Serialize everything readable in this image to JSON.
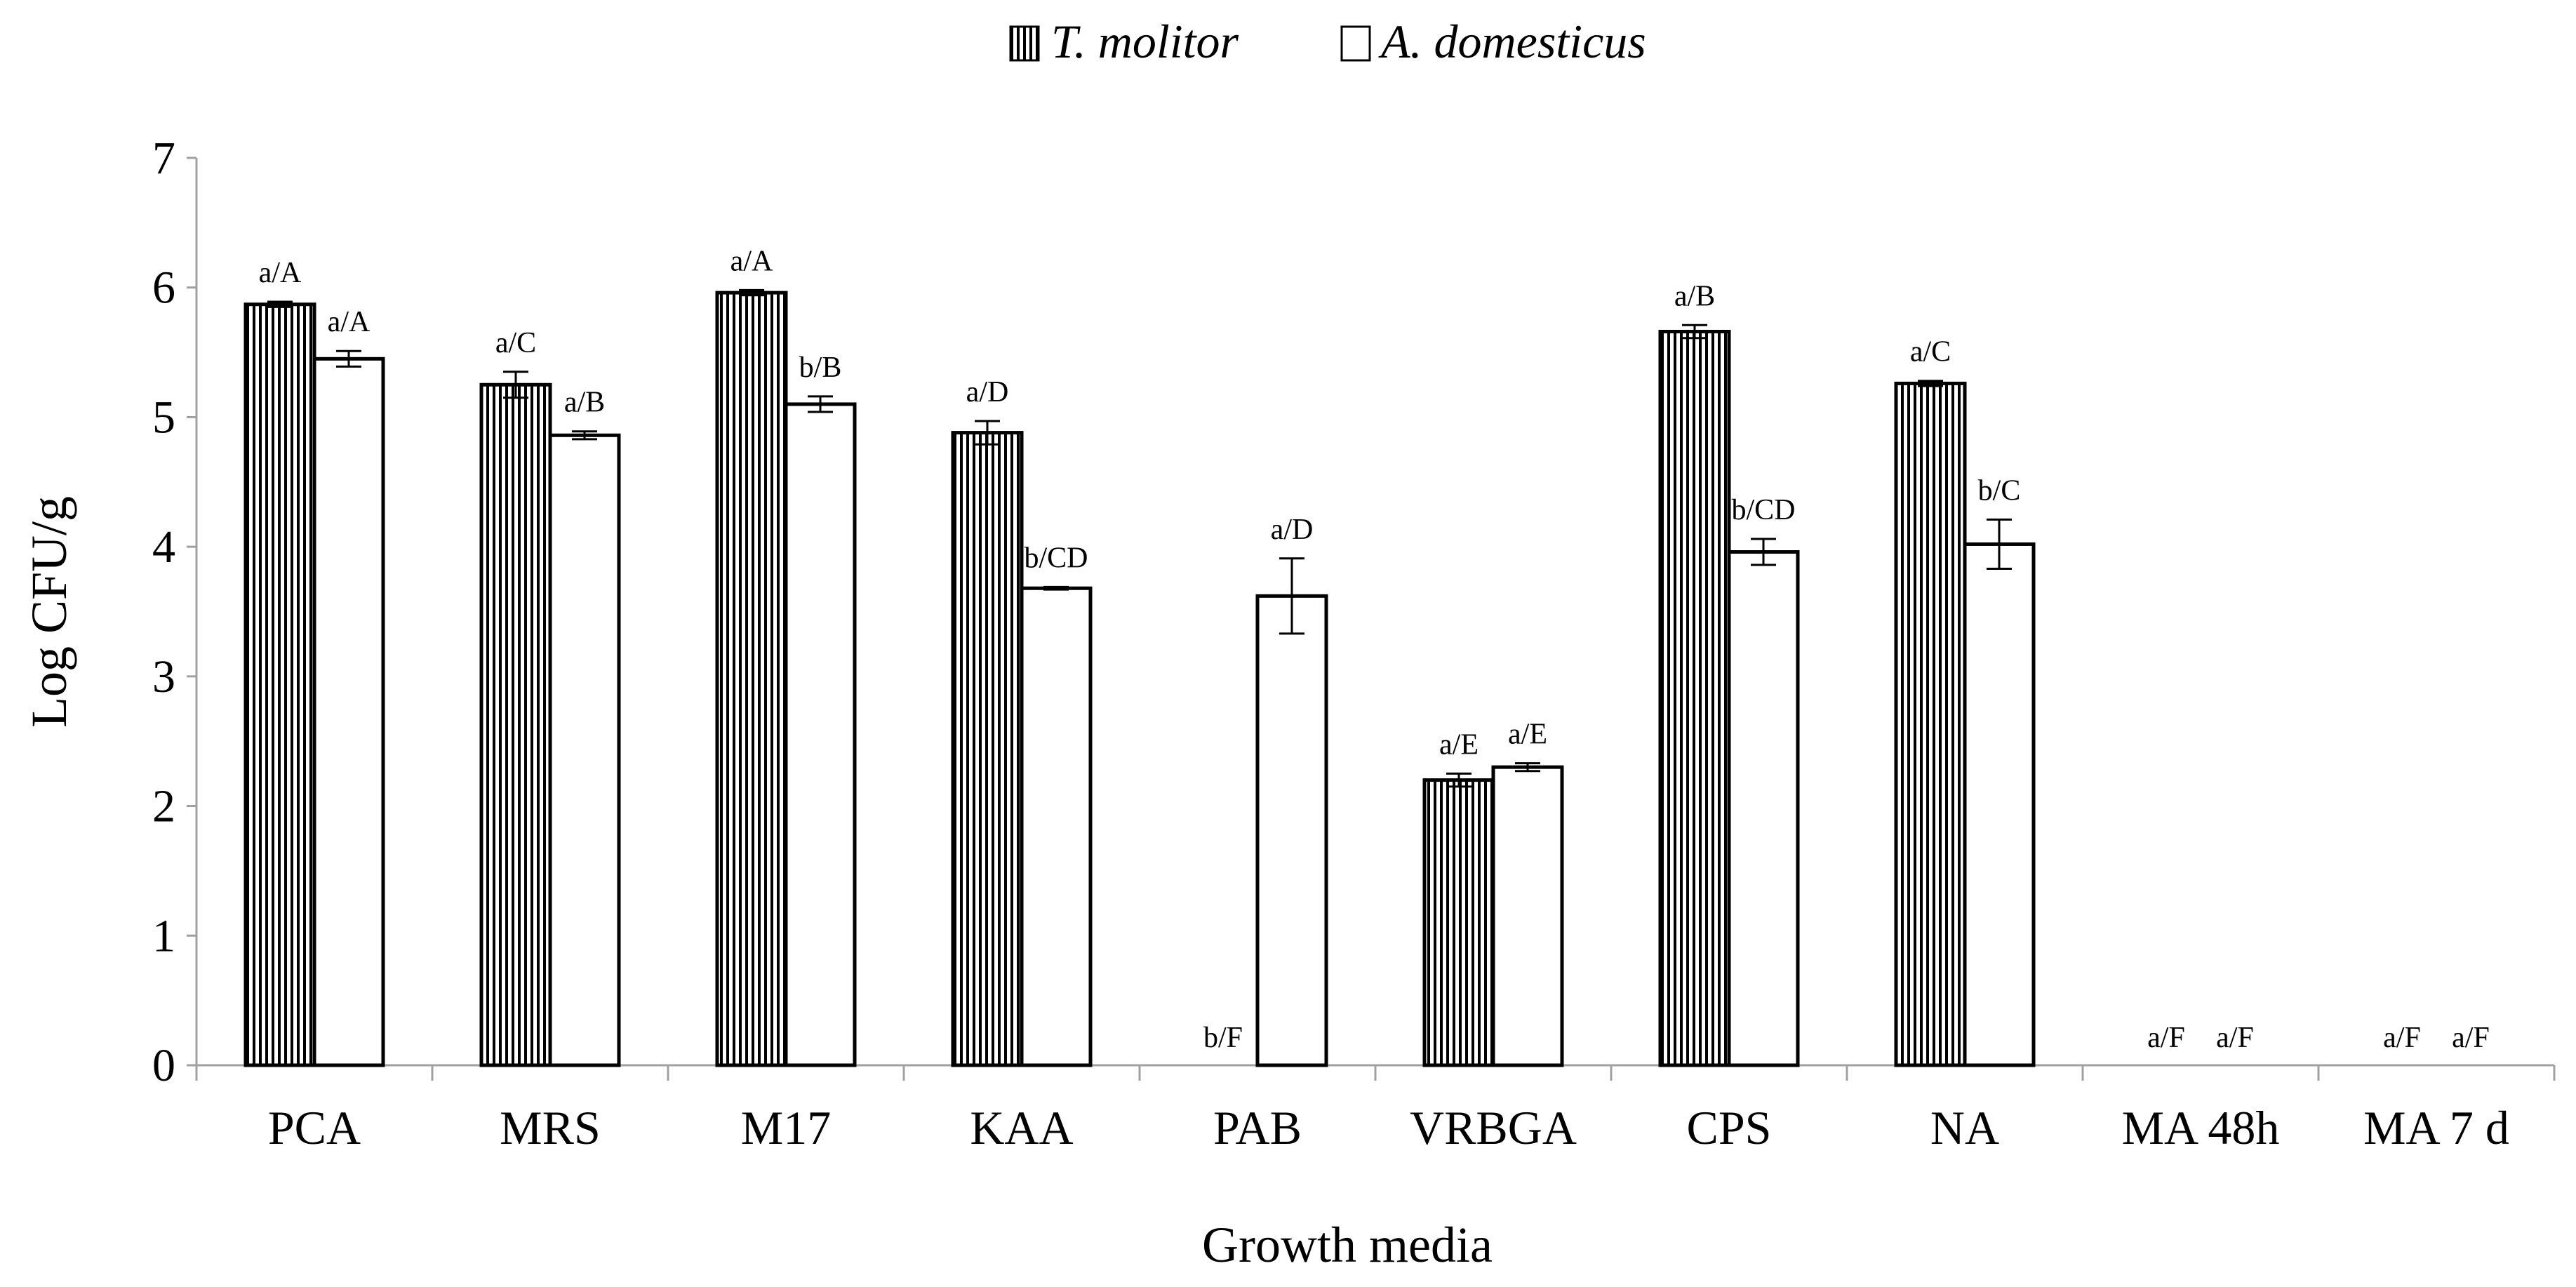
{
  "chart_data": {
    "type": "bar",
    "title": "",
    "xlabel": "Growth media",
    "ylabel": "Log CFU/g",
    "ylim": [
      0,
      7
    ],
    "yticks": [
      "0",
      "1",
      "2",
      "3",
      "4",
      "5",
      "6",
      "7"
    ],
    "grid": false,
    "legend_position": "top-center",
    "categories": [
      "PCA",
      "MRS",
      "M17",
      "KAA",
      "PAB",
      "VRBGA",
      "CPS",
      "NA",
      "MA 48h",
      "MA 7 d"
    ],
    "series": [
      {
        "name": "T. molitor",
        "pattern": "vertical-stripes",
        "values": [
          5.87,
          5.25,
          5.96,
          4.88,
          0,
          2.2,
          5.66,
          5.26,
          0,
          0
        ],
        "errors": [
          0.02,
          0.1,
          0.02,
          0.09,
          0,
          0.05,
          0.05,
          0.02,
          0,
          0
        ],
        "labels": [
          "a/A",
          "a/C",
          "a/A",
          "a/D",
          "b/F",
          "a/E",
          "a/B",
          "a/C",
          "a/F",
          "a/F"
        ]
      },
      {
        "name": "A. domesticus",
        "pattern": "white",
        "values": [
          5.45,
          4.86,
          5.1,
          3.68,
          3.62,
          2.3,
          3.96,
          4.02,
          0,
          0
        ],
        "errors": [
          0.06,
          0.03,
          0.06,
          0.01,
          0.29,
          0.03,
          0.1,
          0.19,
          0,
          0
        ],
        "labels": [
          "a/A",
          "a/B",
          "b/B",
          "b/CD",
          "a/D",
          "a/E",
          "b/CD",
          "b/C",
          "a/F",
          "a/F"
        ]
      }
    ]
  }
}
